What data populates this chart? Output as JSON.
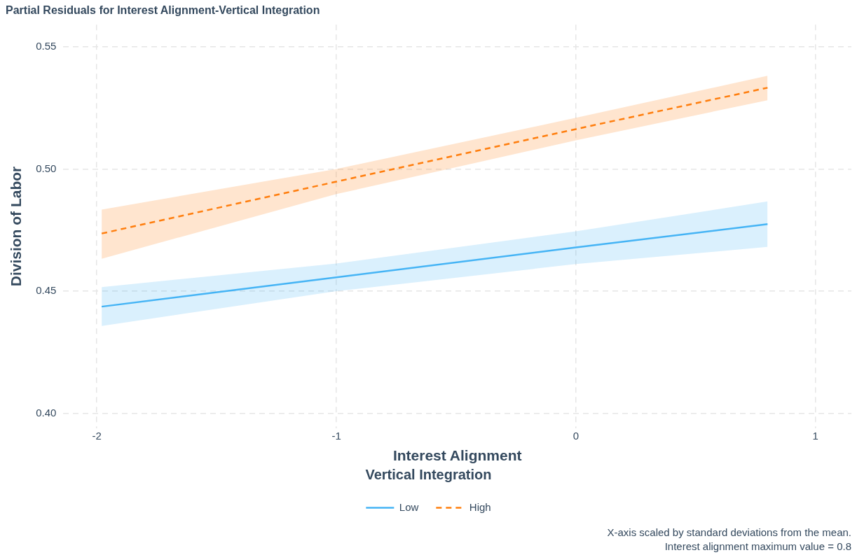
{
  "chart_data": {
    "type": "line",
    "title": "Partial Residuals for Interest Alignment-Vertical Integration",
    "xlabel": "Interest Alignment",
    "ylabel": "Division of Labor",
    "legend_title": "Vertical Integration",
    "legend": "bottom",
    "grid": true,
    "marker": "none",
    "x": [
      -1.98,
      -1,
      0,
      0.8
    ],
    "series": [
      {
        "name": "Low",
        "color": "#45b4f5",
        "line_style": "solid",
        "values": [
          0.4437,
          0.4557,
          0.4679,
          0.4774
        ],
        "lower": [
          0.4358,
          0.45,
          0.4611,
          0.4681
        ],
        "upper": [
          0.4517,
          0.4613,
          0.4745,
          0.4867
        ]
      },
      {
        "name": "High",
        "color": "#ff7f0e",
        "line_style": "dashed",
        "values": [
          0.4736,
          0.4948,
          0.5163,
          0.5332
        ],
        "lower": [
          0.4633,
          0.4897,
          0.5117,
          0.5281
        ],
        "upper": [
          0.4834,
          0.5,
          0.5209,
          0.5381
        ]
      }
    ],
    "xlim": [
      -2.14,
      1.15
    ],
    "xticks": [
      -2,
      -1,
      0,
      1
    ],
    "ylim": [
      0.394,
      0.559
    ],
    "yticks": [
      {
        "value": 0.4,
        "label": "0.40"
      },
      0.45,
      {
        "value": 0.5,
        "label": "0.50"
      },
      0.55
    ],
    "annotations": [
      "X-axis scaled by standard deviations from the mean.",
      "Interest alignment maximum value = 0.8"
    ]
  }
}
